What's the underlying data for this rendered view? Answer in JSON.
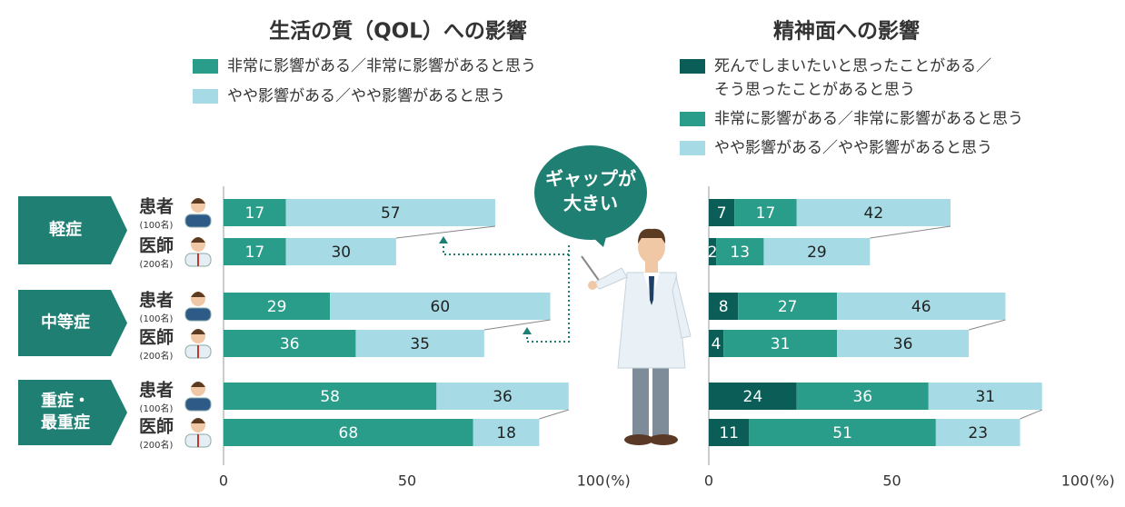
{
  "chart_data": [
    {
      "type": "stacked-bar-h",
      "title": "生活の質（QOL）への影響",
      "series": [
        {
          "name": "非常に影響がある／非常に影響があると思う",
          "color": "#2a9d8a",
          "values": [
            17,
            17,
            29,
            36,
            58,
            68
          ]
        },
        {
          "name": "やや影響がある／やや影響があると思う",
          "color": "#a6dbe6",
          "values": [
            57,
            30,
            60,
            35,
            36,
            18
          ]
        }
      ],
      "xlim": [
        0,
        100
      ],
      "xticks": [
        0,
        50,
        100
      ],
      "x_unit": "(%)"
    },
    {
      "type": "stacked-bar-h",
      "title": "精神面への影響",
      "series": [
        {
          "name": "死んでしまいたいと思ったことがある／\nそう思ったことがあると思う",
          "color": "#0b5e57",
          "values": [
            7,
            2,
            8,
            4,
            24,
            11
          ]
        },
        {
          "name": "非常に影響がある／非常に影響があると思う",
          "color": "#2a9d8a",
          "values": [
            17,
            13,
            27,
            31,
            36,
            51
          ]
        },
        {
          "name": "やや影響がある／やや影響があると思う",
          "color": "#a6dbe6",
          "values": [
            42,
            29,
            46,
            36,
            31,
            23
          ]
        }
      ],
      "xlim": [
        0,
        100
      ],
      "xticks": [
        0,
        50,
        100
      ],
      "x_unit": "(%)"
    }
  ],
  "groups": [
    {
      "label": [
        "軽症"
      ],
      "rows": [
        {
          "role": "患者",
          "count": "(100名)"
        },
        {
          "role": "医師",
          "count": "(200名)"
        }
      ]
    },
    {
      "label": [
        "中等症"
      ],
      "rows": [
        {
          "role": "患者",
          "count": "(100名)"
        },
        {
          "role": "医師",
          "count": "(200名)"
        }
      ]
    },
    {
      "label": [
        "重症・",
        "最重症"
      ],
      "rows": [
        {
          "role": "患者",
          "count": "(100名)"
        },
        {
          "role": "医師",
          "count": "(200名)"
        }
      ]
    }
  ],
  "callout": [
    "ギャップが",
    "大きい"
  ]
}
